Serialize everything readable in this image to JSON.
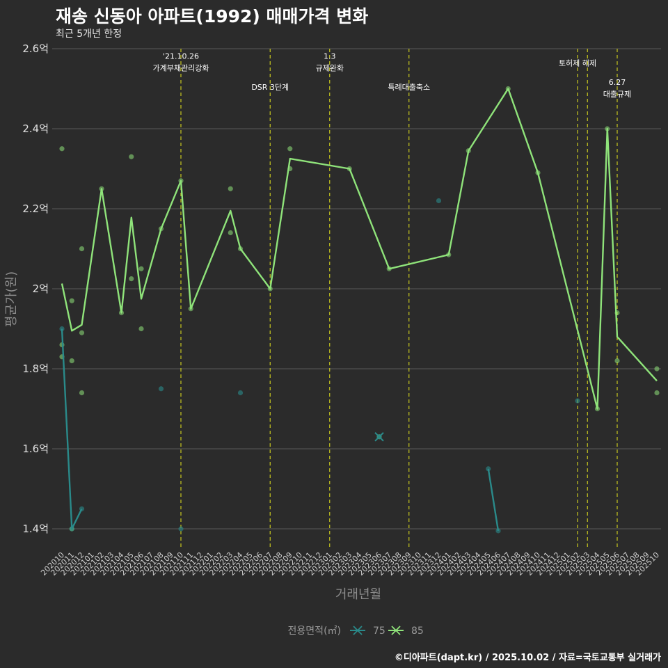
{
  "header": {
    "title": "재송 신동아 아파트(1992) 매매가격 변화",
    "subtitle": "최근 5개년 한정"
  },
  "footer": {
    "caption": "©디아파트(dapt.kr) / 2025.10.02 / 자료=국토교통부 실거래가"
  },
  "colors": {
    "background": "#2b2b2b",
    "grid": "#5a5a5a",
    "series_75": "#2a8a8a",
    "series_85": "#8fe37a",
    "event_line": "#c8c81e"
  },
  "chart_data": {
    "type": "line",
    "title": "재송 신동아 아파트(1992) 매매가격 변화",
    "subtitle": "최근 5개년 한정",
    "xlabel": "거래년월",
    "ylabel": "평균가(원)",
    "ylim": [
      1.35,
      2.62
    ],
    "yticks": [
      {
        "value": 1.4,
        "label": "1.4억"
      },
      {
        "value": 1.6,
        "label": "1.6억"
      },
      {
        "value": 1.8,
        "label": "1.8억"
      },
      {
        "value": 2.0,
        "label": "2억"
      },
      {
        "value": 2.2,
        "label": "2.2억"
      },
      {
        "value": 2.4,
        "label": "2.4억"
      },
      {
        "value": 2.6,
        "label": "2.6억"
      }
    ],
    "categories": [
      "202010",
      "202011",
      "202012",
      "202101",
      "202102",
      "202103",
      "202104",
      "202105",
      "202106",
      "202107",
      "202108",
      "202109",
      "202110",
      "202111",
      "202112",
      "202201",
      "202202",
      "202203",
      "202204",
      "202205",
      "202206",
      "202207",
      "202208",
      "202209",
      "202210",
      "202211",
      "202212",
      "202301",
      "202302",
      "202303",
      "202304",
      "202305",
      "202306",
      "202307",
      "202308",
      "202309",
      "202310",
      "202311",
      "202312",
      "202401",
      "202402",
      "202403",
      "202404",
      "202405",
      "202406",
      "202407",
      "202408",
      "202409",
      "202410",
      "202411",
      "202412",
      "202501",
      "202502",
      "202503",
      "202504",
      "202505",
      "202506",
      "202507",
      "202508",
      "202509",
      "202510"
    ],
    "legend_title": "전용면적(㎡)",
    "series": [
      {
        "name": "75",
        "color": "#2a8a8a",
        "line_segments": [
          [
            {
              "x": 0,
              "y": 1.9
            },
            {
              "x": 1,
              "y": 1.4
            },
            {
              "x": 2,
              "y": 1.45
            }
          ],
          [
            {
              "x": 43,
              "y": 1.55
            },
            {
              "x": 44,
              "y": 1.395
            }
          ]
        ],
        "points": [
          {
            "x": 0,
            "y": 1.9
          },
          {
            "x": 1,
            "y": 1.4
          },
          {
            "x": 2,
            "y": 1.45
          },
          {
            "x": 10,
            "y": 1.75
          },
          {
            "x": 12,
            "y": 1.4
          },
          {
            "x": 18,
            "y": 1.74
          },
          {
            "x": 32,
            "y": 1.63
          },
          {
            "x": 38,
            "y": 2.22
          },
          {
            "x": 43,
            "y": 1.55
          },
          {
            "x": 44,
            "y": 1.395
          },
          {
            "x": 52,
            "y": 1.72
          }
        ]
      },
      {
        "name": "85",
        "color": "#8fe37a",
        "line": [
          {
            "x": 0,
            "y": 2.013
          },
          {
            "x": 1,
            "y": 1.895
          },
          {
            "x": 2,
            "y": 1.91
          },
          {
            "x": 4,
            "y": 2.25
          },
          {
            "x": 6,
            "y": 1.94
          },
          {
            "x": 7,
            "y": 2.178
          },
          {
            "x": 8,
            "y": 1.975
          },
          {
            "x": 10,
            "y": 2.15
          },
          {
            "x": 12,
            "y": 2.27
          },
          {
            "x": 13,
            "y": 1.95
          },
          {
            "x": 17,
            "y": 2.195
          },
          {
            "x": 18,
            "y": 2.1
          },
          {
            "x": 21,
            "y": 2.0
          },
          {
            "x": 23,
            "y": 2.325
          },
          {
            "x": 29,
            "y": 2.3
          },
          {
            "x": 33,
            "y": 2.05
          },
          {
            "x": 39,
            "y": 2.085
          },
          {
            "x": 41,
            "y": 2.345
          },
          {
            "x": 45,
            "y": 2.5
          },
          {
            "x": 48,
            "y": 2.29
          },
          {
            "x": 54,
            "y": 1.7
          },
          {
            "x": 55,
            "y": 2.4
          },
          {
            "x": 56,
            "y": 1.88
          },
          {
            "x": 60,
            "y": 1.77
          }
        ],
        "points": [
          {
            "x": 0,
            "y": 2.35
          },
          {
            "x": 0,
            "y": 1.86
          },
          {
            "x": 0,
            "y": 1.83
          },
          {
            "x": 1,
            "y": 1.97
          },
          {
            "x": 1,
            "y": 1.82
          },
          {
            "x": 1,
            "y": 1.4
          },
          {
            "x": 2,
            "y": 2.1
          },
          {
            "x": 2,
            "y": 1.89
          },
          {
            "x": 2,
            "y": 1.74
          },
          {
            "x": 4,
            "y": 2.25
          },
          {
            "x": 6,
            "y": 1.94
          },
          {
            "x": 7,
            "y": 2.33
          },
          {
            "x": 7,
            "y": 2.025
          },
          {
            "x": 8,
            "y": 2.05
          },
          {
            "x": 8,
            "y": 1.9
          },
          {
            "x": 10,
            "y": 2.15
          },
          {
            "x": 12,
            "y": 2.27
          },
          {
            "x": 13,
            "y": 1.95
          },
          {
            "x": 17,
            "y": 2.25
          },
          {
            "x": 17,
            "y": 2.14
          },
          {
            "x": 18,
            "y": 2.1
          },
          {
            "x": 21,
            "y": 2.0
          },
          {
            "x": 23,
            "y": 2.35
          },
          {
            "x": 23,
            "y": 2.3
          },
          {
            "x": 29,
            "y": 2.3
          },
          {
            "x": 32,
            "y": 1.63
          },
          {
            "x": 33,
            "y": 2.05
          },
          {
            "x": 39,
            "y": 2.085
          },
          {
            "x": 41,
            "y": 2.345
          },
          {
            "x": 45,
            "y": 2.5
          },
          {
            "x": 48,
            "y": 2.29
          },
          {
            "x": 54,
            "y": 1.7
          },
          {
            "x": 55,
            "y": 2.4
          },
          {
            "x": 56,
            "y": 1.94
          },
          {
            "x": 56,
            "y": 1.82
          },
          {
            "x": 60,
            "y": 1.8
          },
          {
            "x": 60,
            "y": 1.74
          }
        ]
      }
    ],
    "events": [
      {
        "x": 12,
        "lines": [
          "'21.10.26",
          "가계부채관리강화"
        ],
        "y": 2.575
      },
      {
        "x": 21,
        "lines": [
          "DSR 3단계"
        ],
        "y": 2.497
      },
      {
        "x": 27,
        "lines": [
          "1.3",
          "규제완화"
        ],
        "y": 2.575
      },
      {
        "x": 35,
        "lines": [
          "특례대출축소"
        ],
        "y": 2.497
      },
      {
        "x": 52,
        "lines": [
          "토허제 해제"
        ],
        "y": 2.557
      },
      {
        "x": 53,
        "lines": [],
        "y": 2.557
      },
      {
        "x": 56,
        "lines": [
          "6.27",
          "대출규제"
        ],
        "y": 2.51
      }
    ]
  }
}
